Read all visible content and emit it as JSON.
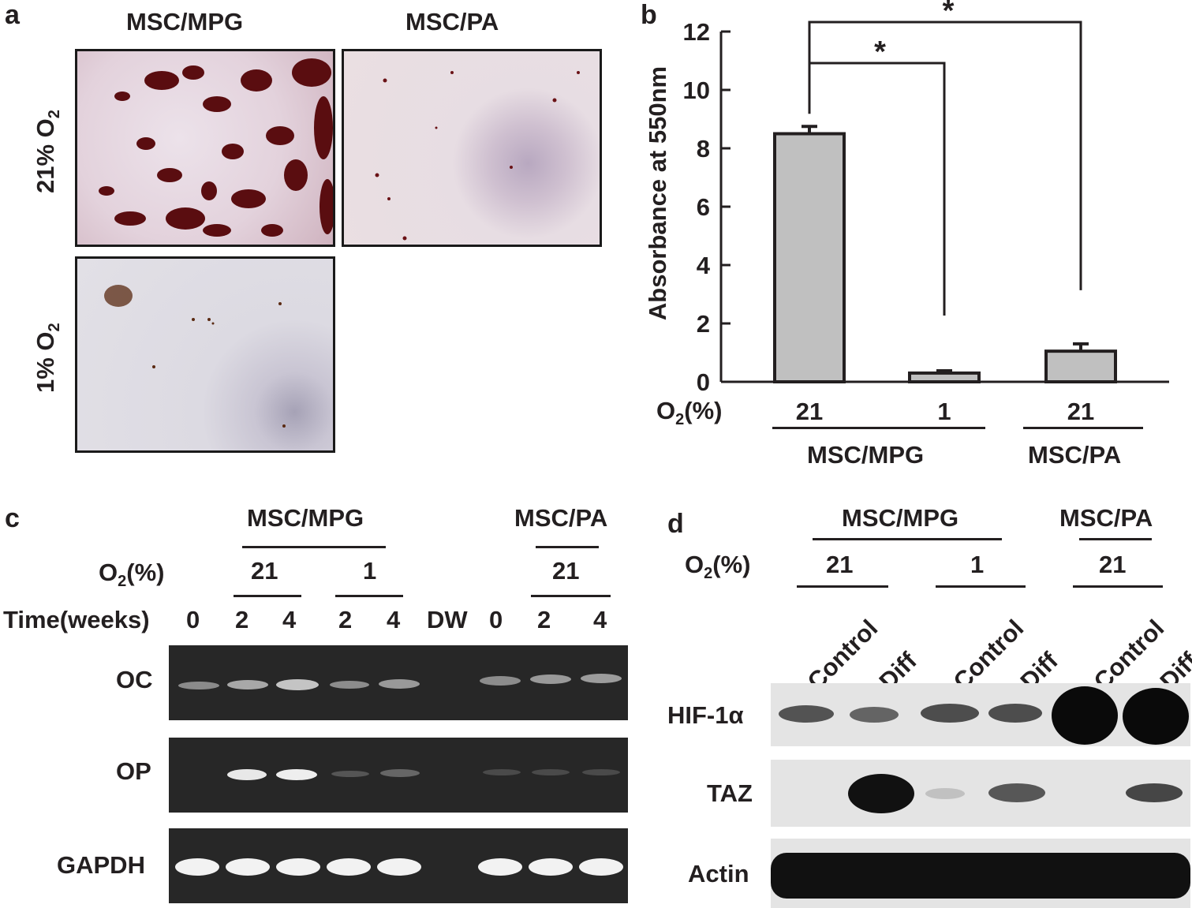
{
  "panel_a": {
    "letter": "a",
    "col_headers": [
      "MSC/MPG",
      "MSC/PA"
    ],
    "row_labels": [
      {
        "main": "21% O",
        "sub": "2"
      },
      {
        "main": "1% O",
        "sub": "2"
      }
    ]
  },
  "panel_b": {
    "letter": "b",
    "x_prefix": "O",
    "x_prefix_sub": "2",
    "x_suffix": "(%)",
    "group_labels": [
      "MSC/MPG",
      "MSC/PA"
    ],
    "significance_marks": [
      "*",
      "*"
    ]
  },
  "chart_data": {
    "type": "bar",
    "categories": [
      "21",
      "1",
      "21"
    ],
    "groups": [
      "MSC/MPG",
      "MSC/MPG",
      "MSC/PA"
    ],
    "values": [
      8.5,
      0.3,
      1.05
    ],
    "errors": [
      0.25,
      0.08,
      0.25
    ],
    "ylabel": "Absorbance at 550nm",
    "ylim": [
      0,
      12
    ],
    "yticks": [
      0,
      2,
      4,
      6,
      8,
      10,
      12
    ],
    "bar_color": "#c0c0c0",
    "grid": false
  },
  "panel_c": {
    "letter": "c",
    "group_labels": [
      "MSC/MPG",
      "MSC/PA"
    ],
    "o2_label": "O",
    "o2_sub": "2",
    "o2_suffix": "(%)",
    "o2_values": [
      "21",
      "1",
      "21"
    ],
    "time_label": "Time(weeks)",
    "lanes": [
      "0",
      "2",
      "4",
      "2",
      "4",
      "DW",
      "0",
      "2",
      "4"
    ],
    "genes": [
      "OC",
      "OP",
      "GAPDH"
    ]
  },
  "panel_d": {
    "letter": "d",
    "group_labels": [
      "MSC/MPG",
      "MSC/PA"
    ],
    "o2_label": "O",
    "o2_sub": "2",
    "o2_suffix": "(%)",
    "o2_values": [
      "21",
      "1",
      "21"
    ],
    "lanes": [
      "Control",
      "Diff",
      "Control",
      "Diff",
      "Control",
      "Diff"
    ],
    "proteins": [
      "HIF-1α",
      "TAZ",
      "Actin"
    ]
  }
}
